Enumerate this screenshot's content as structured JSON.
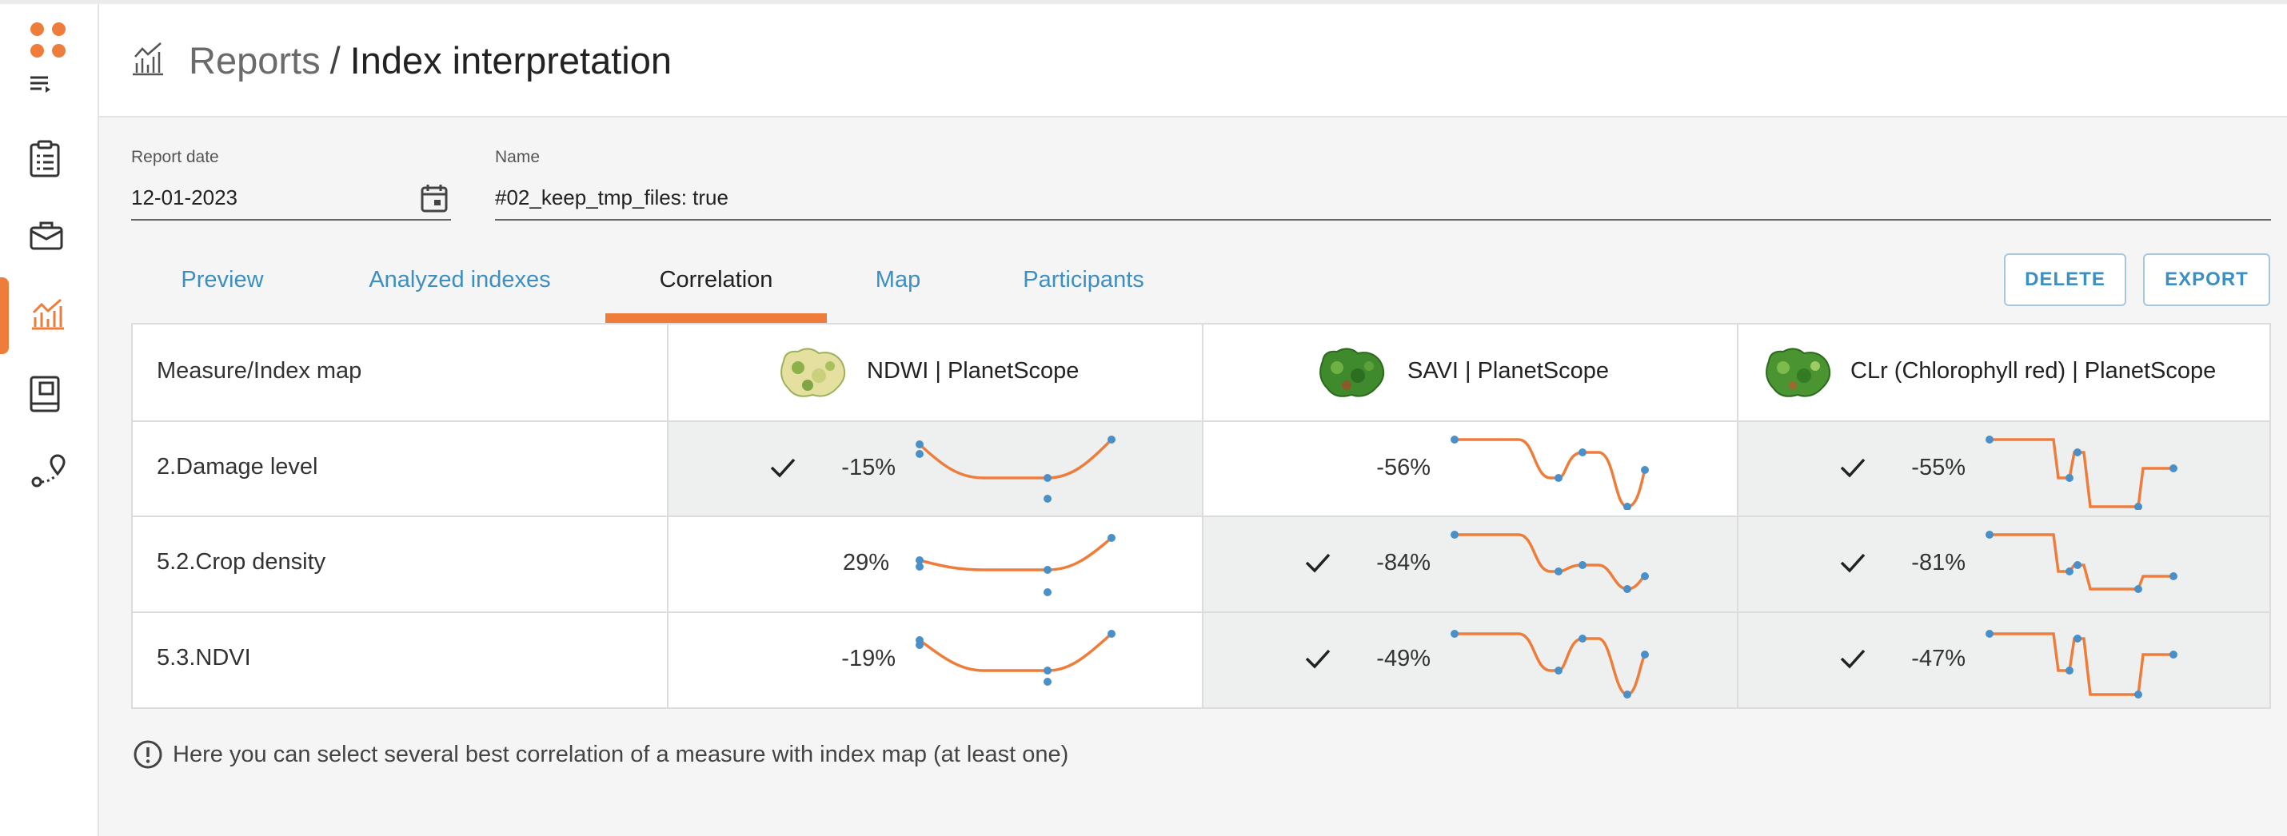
{
  "accent_color": "#ee7d3c",
  "link_color": "#3d8fc2",
  "sidebar": {
    "logo_icon": "four-dots-icon",
    "menu_icon": "menu-icon",
    "items": [
      {
        "name": "clipboard-icon",
        "active": false
      },
      {
        "name": "briefcase-icon",
        "active": false
      },
      {
        "name": "chart-icon",
        "active": true
      },
      {
        "name": "book-icon",
        "active": false
      },
      {
        "name": "route-icon",
        "active": false
      }
    ]
  },
  "header": {
    "icon": "chart-icon",
    "breadcrumb_root": "Reports",
    "breadcrumb_separator": "/",
    "title": "Index interpretation"
  },
  "form": {
    "report_date_label": "Report date",
    "report_date_value": "12-01-2023",
    "name_label": "Name",
    "name_value": "#02_keep_tmp_files: true"
  },
  "tabs": [
    {
      "label": "Preview",
      "active": false
    },
    {
      "label": "Analyzed indexes",
      "active": false
    },
    {
      "label": "Correlation",
      "active": true
    },
    {
      "label": "Map",
      "active": false
    },
    {
      "label": "Participants",
      "active": false
    }
  ],
  "actions": {
    "delete_label": "DELETE",
    "export_label": "EXPORT"
  },
  "table": {
    "header_label": "Measure/Index map",
    "columns": [
      {
        "label": "NDWI | PlanetScope"
      },
      {
        "label": "SAVI | PlanetScope"
      },
      {
        "label": "CLr (Chlorophyll red) | PlanetScope"
      }
    ],
    "rows": [
      {
        "label": "2.Damage level",
        "cells": [
          {
            "value": "-15%",
            "checked": true,
            "selected": true
          },
          {
            "value": "-56%",
            "checked": false,
            "selected": false
          },
          {
            "value": "-55%",
            "checked": true,
            "selected": true
          }
        ]
      },
      {
        "label": "5.2.Crop density",
        "cells": [
          {
            "value": "29%",
            "checked": false,
            "selected": false
          },
          {
            "value": "-84%",
            "checked": true,
            "selected": true
          },
          {
            "value": "-81%",
            "checked": true,
            "selected": true
          }
        ]
      },
      {
        "label": "5.3.NDVI",
        "cells": [
          {
            "value": "-19%",
            "checked": false,
            "selected": false
          },
          {
            "value": "-49%",
            "checked": true,
            "selected": true
          },
          {
            "value": "-47%",
            "checked": true,
            "selected": true
          }
        ]
      }
    ]
  },
  "info": {
    "icon": "info-circle-icon",
    "text": "Here you can select several best correlation of a measure with index map (at least one)"
  }
}
